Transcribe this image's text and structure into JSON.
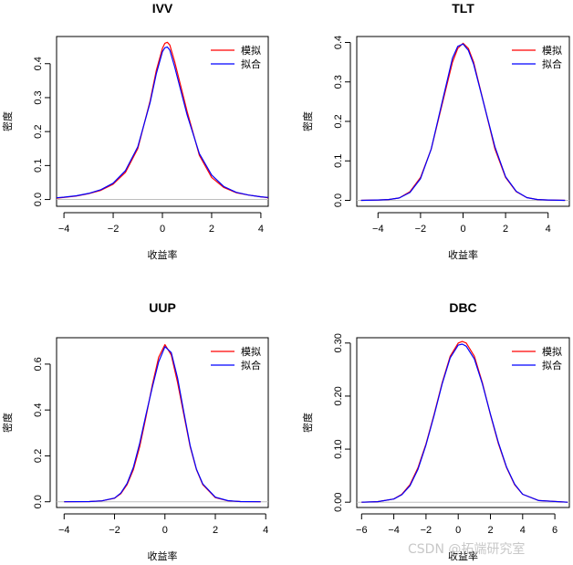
{
  "colors": {
    "simulated": "#ff0000",
    "fitted": "#0000ff",
    "baseline": "#bebebe",
    "axis": "#000000"
  },
  "watermark": "CSDN @拓端研究室",
  "chart_data": [
    {
      "type": "line",
      "title": "IVV",
      "xlabel": "收益率",
      "ylabel": "密度",
      "xlim": [
        -4.3,
        4.3
      ],
      "ylim": [
        -0.02,
        0.48
      ],
      "xticks": [
        -4,
        -2,
        0,
        2,
        4
      ],
      "yticks": [
        0.0,
        0.1,
        0.2,
        0.3,
        0.4
      ],
      "ytick_labels": [
        "0.0",
        "0.1",
        "0.2",
        "0.3",
        "0.4"
      ],
      "legend": {
        "position": "top-right",
        "entries": [
          "模拟",
          "拟合"
        ]
      },
      "series": [
        {
          "name": "模拟",
          "color": "#ff0000",
          "x": [
            -4.3,
            -4,
            -3.5,
            -3,
            -2.5,
            -2,
            -1.5,
            -1,
            -0.5,
            -0.25,
            0,
            0.1,
            0.2,
            0.3,
            0.5,
            1,
            1.5,
            2,
            2.5,
            3,
            3.5,
            4,
            4.3
          ],
          "y": [
            0.004,
            0.006,
            0.01,
            0.017,
            0.027,
            0.045,
            0.08,
            0.15,
            0.29,
            0.38,
            0.445,
            0.46,
            0.463,
            0.455,
            0.405,
            0.26,
            0.13,
            0.065,
            0.035,
            0.02,
            0.013,
            0.008,
            0.005
          ]
        },
        {
          "name": "拟合",
          "color": "#0000ff",
          "x": [
            -4.3,
            -4,
            -3.5,
            -3,
            -2.5,
            -2,
            -1.5,
            -1,
            -0.5,
            -0.25,
            0,
            0.1,
            0.2,
            0.3,
            0.5,
            1,
            1.5,
            2,
            2.5,
            3,
            3.5,
            4,
            4.3
          ],
          "y": [
            0.005,
            0.007,
            0.011,
            0.018,
            0.029,
            0.048,
            0.085,
            0.155,
            0.285,
            0.37,
            0.435,
            0.447,
            0.449,
            0.44,
            0.39,
            0.25,
            0.135,
            0.072,
            0.038,
            0.021,
            0.013,
            0.008,
            0.006
          ]
        }
      ]
    },
    {
      "type": "line",
      "title": "TLT",
      "xlabel": "收益率",
      "ylabel": "密度",
      "xlim": [
        -5,
        5
      ],
      "ylim": [
        -0.015,
        0.415
      ],
      "xticks": [
        -4,
        -2,
        0,
        2,
        4
      ],
      "yticks": [
        0.0,
        0.1,
        0.2,
        0.3,
        0.4
      ],
      "ytick_labels": [
        "0.0",
        "0.1",
        "0.2",
        "0.3",
        "0.4"
      ],
      "legend": {
        "position": "top-right",
        "entries": [
          "模拟",
          "拟合"
        ]
      },
      "series": [
        {
          "name": "模拟",
          "color": "#ff0000",
          "x": [
            -4.8,
            -4,
            -3.5,
            -3,
            -2.5,
            -2,
            -1.5,
            -1,
            -0.5,
            -0.25,
            0,
            0.25,
            0.5,
            1,
            1.5,
            2,
            2.5,
            3,
            3.5,
            4,
            4.8
          ],
          "y": [
            0.0,
            0.001,
            0.002,
            0.006,
            0.022,
            0.058,
            0.13,
            0.24,
            0.35,
            0.385,
            0.398,
            0.385,
            0.35,
            0.24,
            0.13,
            0.058,
            0.022,
            0.007,
            0.002,
            0.001,
            0.0
          ]
        },
        {
          "name": "拟合",
          "color": "#0000ff",
          "x": [
            -4.8,
            -4,
            -3.5,
            -3,
            -2.5,
            -2,
            -1.5,
            -1,
            -0.5,
            -0.25,
            0,
            0.25,
            0.5,
            1,
            1.5,
            2,
            2.5,
            3,
            3.5,
            4,
            4.8
          ],
          "y": [
            0.0,
            0.001,
            0.002,
            0.006,
            0.02,
            0.055,
            0.13,
            0.245,
            0.36,
            0.39,
            0.396,
            0.38,
            0.345,
            0.24,
            0.135,
            0.06,
            0.023,
            0.007,
            0.002,
            0.001,
            0.0
          ]
        }
      ]
    },
    {
      "type": "line",
      "title": "UUP",
      "xlabel": "收益率",
      "ylabel": "密度",
      "xlim": [
        -4.3,
        4.1
      ],
      "ylim": [
        -0.025,
        0.715
      ],
      "xticks": [
        -4,
        -2,
        0,
        2,
        4
      ],
      "yticks": [
        0.0,
        0.2,
        0.4,
        0.6
      ],
      "ytick_labels": [
        "0.0",
        "0.2",
        "0.4",
        "0.6"
      ],
      "legend": {
        "position": "top-right",
        "entries": [
          "模拟",
          "拟合"
        ]
      },
      "series": [
        {
          "name": "模拟",
          "color": "#ff0000",
          "x": [
            -4,
            -3,
            -2.5,
            -2,
            -1.75,
            -1.5,
            -1.25,
            -1,
            -0.75,
            -0.5,
            -0.25,
            0,
            0.25,
            0.5,
            0.75,
            1,
            1.25,
            1.5,
            2,
            2.5,
            3,
            3.8
          ],
          "y": [
            0.0,
            0.001,
            0.004,
            0.015,
            0.035,
            0.075,
            0.14,
            0.24,
            0.37,
            0.51,
            0.63,
            0.685,
            0.64,
            0.52,
            0.38,
            0.24,
            0.14,
            0.075,
            0.018,
            0.004,
            0.001,
            0.0
          ]
        },
        {
          "name": "拟合",
          "color": "#0000ff",
          "x": [
            -4,
            -3,
            -2.5,
            -2,
            -1.75,
            -1.5,
            -1.25,
            -1,
            -0.75,
            -0.5,
            -0.25,
            0,
            0.25,
            0.5,
            0.75,
            1,
            1.25,
            1.5,
            2,
            2.5,
            3,
            3.8
          ],
          "y": [
            0.0,
            0.001,
            0.004,
            0.016,
            0.038,
            0.08,
            0.15,
            0.255,
            0.38,
            0.5,
            0.61,
            0.676,
            0.65,
            0.54,
            0.39,
            0.245,
            0.142,
            0.078,
            0.02,
            0.005,
            0.001,
            0.0
          ]
        }
      ]
    },
    {
      "type": "line",
      "title": "DBC",
      "xlabel": "收益率",
      "ylabel": "密度",
      "xlim": [
        -6.3,
        6.9
      ],
      "ylim": [
        -0.01,
        0.31
      ],
      "xticks": [
        -6,
        -4,
        -2,
        0,
        2,
        4,
        6
      ],
      "yticks": [
        0.0,
        0.1,
        0.2,
        0.3
      ],
      "ytick_labels": [
        "0.00",
        "0.10",
        "0.20",
        "0.30"
      ],
      "legend": {
        "position": "top-right",
        "entries": [
          "模拟",
          "拟合"
        ]
      },
      "series": [
        {
          "name": "模拟",
          "color": "#ff0000",
          "x": [
            -6,
            -5,
            -4,
            -3.5,
            -3,
            -2.5,
            -2,
            -1.5,
            -1,
            -0.5,
            0,
            0.25,
            0.5,
            1,
            1.5,
            2,
            2.5,
            3,
            3.5,
            4,
            5,
            6.8
          ],
          "y": [
            0.0,
            0.001,
            0.006,
            0.015,
            0.033,
            0.065,
            0.11,
            0.165,
            0.225,
            0.275,
            0.3,
            0.303,
            0.3,
            0.275,
            0.225,
            0.165,
            0.11,
            0.065,
            0.033,
            0.015,
            0.003,
            0.0
          ]
        },
        {
          "name": "拟合",
          "color": "#0000ff",
          "x": [
            -6,
            -5,
            -4,
            -3.5,
            -3,
            -2.5,
            -2,
            -1.5,
            -1,
            -0.5,
            0,
            0.25,
            0.5,
            1,
            1.5,
            2,
            2.5,
            3,
            3.5,
            4,
            5,
            6.8
          ],
          "y": [
            0.0,
            0.001,
            0.006,
            0.014,
            0.031,
            0.062,
            0.108,
            0.163,
            0.223,
            0.272,
            0.296,
            0.298,
            0.294,
            0.27,
            0.223,
            0.166,
            0.112,
            0.066,
            0.034,
            0.015,
            0.003,
            0.0
          ]
        }
      ]
    }
  ]
}
